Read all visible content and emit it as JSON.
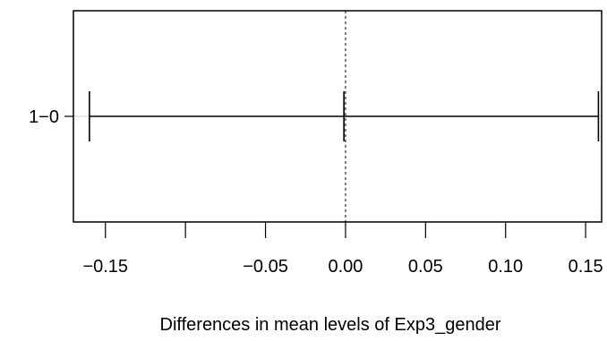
{
  "chart_data": {
    "type": "interval",
    "title": "",
    "xlabel": "Differences in mean levels of Exp3_gender",
    "ylabel": "",
    "xlim": [
      -0.17,
      0.16
    ],
    "x_ticks": [
      -0.15,
      -0.1,
      -0.05,
      0.0,
      0.05,
      0.1,
      0.15
    ],
    "x_tick_labels": [
      "−0.15",
      "",
      "−0.05",
      "0.00",
      "0.05",
      "0.10",
      "0.15"
    ],
    "reference_line": 0,
    "grid": false,
    "comparisons": [
      {
        "label": "1−0",
        "diff": -0.001,
        "lwr": -0.16,
        "upr": 0.158
      }
    ]
  }
}
